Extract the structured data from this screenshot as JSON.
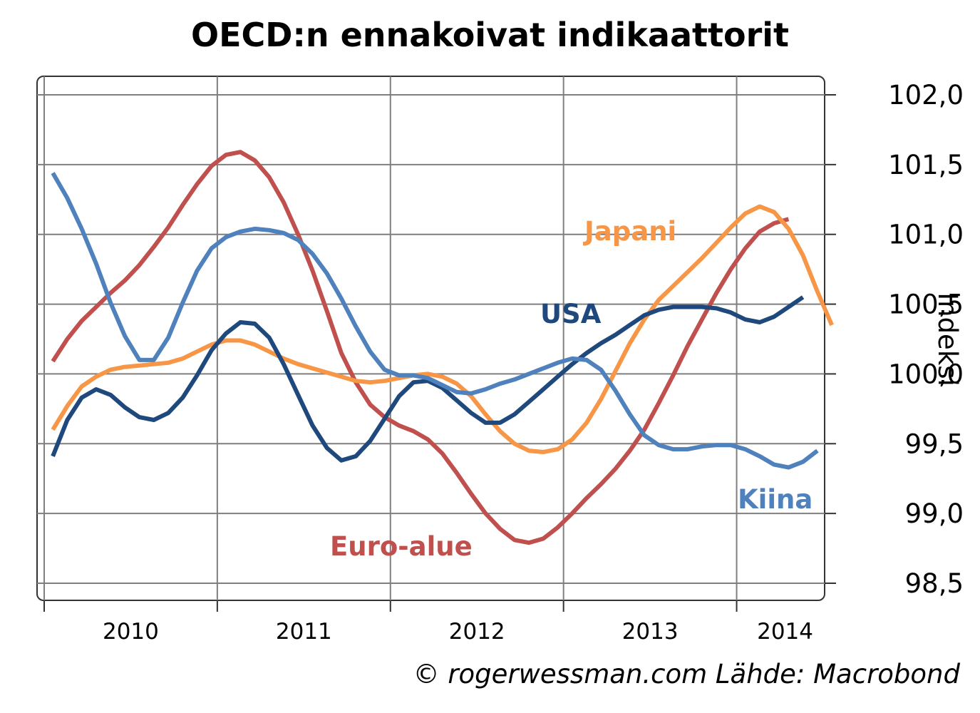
{
  "title": "OECD:n ennakoivat indikaattorit",
  "credit": "© rogerwessman.com Lähde: Macrobond",
  "chart_data": {
    "type": "line",
    "title": "OECD:n ennakoivat indikaattorit",
    "ylabel": "Indeksi",
    "xlabel": "",
    "ylim": [
      98.5,
      102.0
    ],
    "xlim": [
      2009.0,
      2013.43
    ],
    "y_ticks": [
      98.5,
      99.0,
      99.5,
      100.0,
      100.5,
      101.0,
      101.5,
      102.0
    ],
    "y_tick_labels": [
      "98,5",
      "99,0",
      "99,5",
      "100,0",
      "100,5",
      "101,0",
      "101,5",
      "102,0"
    ],
    "x_tick_positions": [
      2009,
      2010,
      2011,
      2012,
      2013
    ],
    "x_label_positions": [
      2009.5,
      2010.5,
      2011.5,
      2012.5,
      2013.28
    ],
    "x_tick_labels": [
      "2010",
      "2011",
      "2012",
      "2013",
      "2014"
    ],
    "grid": true,
    "y_axis_side": "right",
    "x_start": 2009.05,
    "x_step": 0.08333,
    "series": [
      {
        "name": "Euro-alue",
        "color": "#C0504D",
        "values": [
          100.09,
          100.25,
          100.38,
          100.48,
          100.58,
          100.67,
          100.78,
          100.91,
          101.05,
          101.21,
          101.36,
          101.49,
          101.57,
          101.59,
          101.53,
          101.41,
          101.23,
          101.0,
          100.74,
          100.45,
          100.15,
          99.94,
          99.78,
          99.69,
          99.63,
          99.59,
          99.53,
          99.43,
          99.29,
          99.14,
          99.0,
          98.89,
          98.81,
          98.79,
          98.82,
          98.9,
          99.0,
          99.11,
          99.21,
          99.32,
          99.45,
          99.6,
          99.79,
          99.99,
          100.2,
          100.39,
          100.58,
          100.75,
          100.9,
          101.02,
          101.08,
          101.11
        ]
      },
      {
        "name": "Japani",
        "color": "#F79646",
        "values": [
          99.6,
          99.77,
          99.91,
          99.98,
          100.03,
          100.05,
          100.06,
          100.07,
          100.08,
          100.11,
          100.16,
          100.21,
          100.24,
          100.24,
          100.21,
          100.16,
          100.11,
          100.07,
          100.04,
          100.01,
          99.98,
          99.95,
          99.94,
          99.95,
          99.97,
          99.99,
          100.0,
          99.98,
          99.93,
          99.84,
          99.71,
          99.59,
          99.5,
          99.45,
          99.44,
          99.46,
          99.53,
          99.65,
          99.82,
          100.02,
          100.22,
          100.39,
          100.53,
          100.63,
          100.73,
          100.83,
          100.94,
          101.05,
          101.15,
          101.2,
          101.16,
          101.04,
          100.85,
          100.59,
          100.35
        ]
      },
      {
        "name": "USA",
        "color": "#1F497D",
        "values": [
          99.41,
          99.67,
          99.83,
          99.89,
          99.85,
          99.76,
          99.69,
          99.67,
          99.72,
          99.83,
          99.99,
          100.17,
          100.29,
          100.37,
          100.36,
          100.26,
          100.07,
          99.85,
          99.63,
          99.47,
          99.38,
          99.41,
          99.52,
          99.68,
          99.84,
          99.94,
          99.95,
          99.9,
          99.81,
          99.72,
          99.65,
          99.65,
          99.71,
          99.8,
          99.89,
          99.98,
          100.07,
          100.15,
          100.22,
          100.28,
          100.35,
          100.42,
          100.46,
          100.48,
          100.48,
          100.48,
          100.47,
          100.44,
          100.39,
          100.37,
          100.41,
          100.48,
          100.55
        ]
      },
      {
        "name": "Kiina",
        "color": "#4F81BD",
        "values": [
          101.44,
          101.26,
          101.04,
          100.79,
          100.51,
          100.27,
          100.1,
          100.1,
          100.26,
          100.51,
          100.74,
          100.9,
          100.98,
          101.02,
          101.04,
          101.03,
          101.01,
          100.96,
          100.86,
          100.72,
          100.54,
          100.34,
          100.16,
          100.03,
          99.99,
          99.99,
          99.97,
          99.92,
          99.87,
          99.86,
          99.89,
          99.93,
          99.96,
          100.0,
          100.04,
          100.08,
          100.11,
          100.1,
          100.03,
          99.88,
          99.71,
          99.56,
          99.49,
          99.46,
          99.46,
          99.48,
          99.49,
          99.49,
          99.46,
          99.41,
          99.35,
          99.33,
          99.37,
          99.45
        ]
      }
    ],
    "series_labels": [
      {
        "text": "Japani",
        "color": "#F79646"
      },
      {
        "text": "USA",
        "color": "#1F497D"
      },
      {
        "text": "Kiina",
        "color": "#4F81BD"
      },
      {
        "text": "Euro-alue",
        "color": "#C0504D"
      }
    ]
  }
}
